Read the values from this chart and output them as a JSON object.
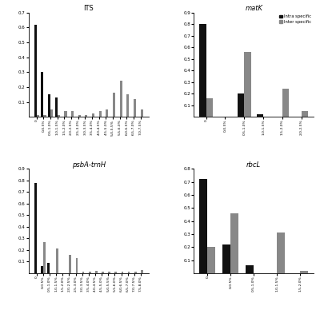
{
  "ITS": {
    "title": "ITS",
    "title_italic": false,
    "categories": [
      "0",
      "0-0.5%",
      "0.5-1.0%",
      "1.0-1.5%",
      "1.5-2.0%",
      "2.0-2.5%",
      "2.5-3.0%",
      "3.0-3.5%",
      "3.5-4.0%",
      "4.0-4.5%",
      "4.5-5.0%",
      "5.0-5.5%",
      "5.5-6.0%",
      "6.0-6.5%",
      "6.5-7.0%",
      "7.0-7.5%"
    ],
    "intra": [
      0.62,
      0.3,
      0.15,
      0.13,
      0.0,
      0.0,
      0.0,
      0.0,
      0.0,
      0.0,
      0.0,
      0.0,
      0.0,
      0.0,
      0.0,
      0.0
    ],
    "inter": [
      0.01,
      0.01,
      0.05,
      0.01,
      0.04,
      0.04,
      0.01,
      0.01,
      0.02,
      0.04,
      0.05,
      0.16,
      0.24,
      0.15,
      0.12,
      0.05
    ],
    "ylim": [
      0,
      0.7
    ],
    "yticks": [
      0.1,
      0.2,
      0.3,
      0.4,
      0.5,
      0.6,
      0.7
    ],
    "show_legend": false
  },
  "matK": {
    "title": "matK",
    "title_italic": true,
    "categories": [
      "0",
      "0-0.5%",
      "0.5-1.0%",
      "1.0-1.5%",
      "1.5-2.0%",
      "2.0-2.5%"
    ],
    "intra": [
      0.8,
      0.0,
      0.2,
      0.02,
      0.0,
      0.0
    ],
    "inter": [
      0.16,
      0.0,
      0.56,
      0.0,
      0.24,
      0.05
    ],
    "ylim": [
      0,
      0.9
    ],
    "yticks": [
      0.1,
      0.2,
      0.3,
      0.4,
      0.5,
      0.6,
      0.7,
      0.8,
      0.9
    ],
    "show_legend": true
  },
  "psbA": {
    "title": "psbA-trnH",
    "title_italic": true,
    "categories": [
      "0",
      "0-0.5%",
      "0.5-1.0%",
      "1.0-1.5%",
      "1.5-2.0%",
      "2.0-2.5%",
      "2.5-3.0%",
      "3.0-3.5%",
      "3.5-4.0%",
      "4.0-4.5%",
      "4.5-5.0%",
      "5.0-5.5%",
      "5.5-6.0%",
      "6.0-6.5%",
      "6.5-7.0%",
      "7.0-7.5%",
      "7.5-8.0%"
    ],
    "intra": [
      0.78,
      0.06,
      0.09,
      0.0,
      0.0,
      0.0,
      0.0,
      0.0,
      0.0,
      0.0,
      0.0,
      0.0,
      0.0,
      0.0,
      0.0,
      0.0,
      0.0
    ],
    "inter": [
      0.0,
      0.27,
      0.0,
      0.21,
      0.0,
      0.16,
      0.13,
      0.01,
      0.01,
      0.02,
      0.01,
      0.01,
      0.01,
      0.01,
      0.01,
      0.01,
      0.03
    ],
    "ylim": [
      0,
      0.9
    ],
    "yticks": [
      0.1,
      0.2,
      0.3,
      0.4,
      0.5,
      0.6,
      0.7,
      0.8,
      0.9
    ],
    "show_legend": false
  },
  "rbcL": {
    "title": "rbcL",
    "title_italic": true,
    "categories": [
      "0",
      "0-0.5%",
      "0.5-1.0%",
      "1.0-1.5%",
      "1.5-2.0%"
    ],
    "intra": [
      0.72,
      0.22,
      0.06,
      0.0,
      0.0
    ],
    "inter": [
      0.2,
      0.46,
      0.0,
      0.31,
      0.02
    ],
    "ylim": [
      0,
      0.8
    ],
    "yticks": [
      0.1,
      0.2,
      0.3,
      0.4,
      0.5,
      0.6,
      0.7,
      0.8
    ],
    "show_legend": false
  },
  "intra_color": "#111111",
  "inter_color": "#888888",
  "legend_labels": [
    "Intra specific",
    "Inter specific"
  ],
  "bar_width": 0.35,
  "figsize": [
    4.0,
    3.93
  ],
  "dpi": 100
}
